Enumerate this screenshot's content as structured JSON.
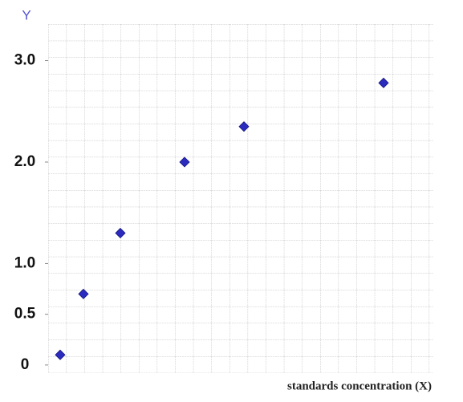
{
  "chart_data": {
    "type": "scatter",
    "y_label": "Y",
    "x_label": "standards concentration (X)",
    "x": [
      0.75,
      2.2,
      4.5,
      8.5,
      12.2,
      20.9
    ],
    "series": [
      {
        "color": "#2b2bc0",
        "values": [
          0.1,
          0.7,
          1.3,
          2.0,
          2.35,
          2.78
        ]
      }
    ],
    "xlim": [
      0,
      24
    ],
    "ylim": [
      -0.08,
      3.36
    ],
    "yticks": [
      0,
      0.5,
      {
        "value": 1,
        "label": "1.0"
      },
      {
        "value": 2,
        "label": "2.0"
      },
      {
        "value": 3,
        "label": "3.0"
      }
    ]
  }
}
